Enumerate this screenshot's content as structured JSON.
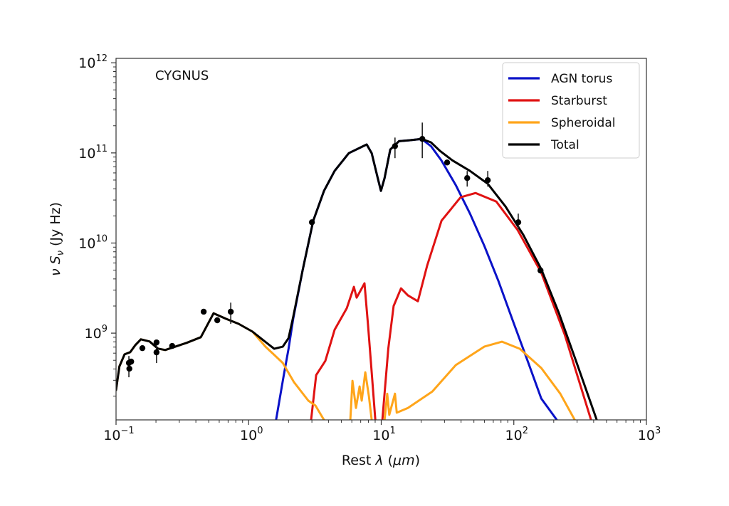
{
  "chart_data": {
    "type": "line",
    "annotation": "CYGNUS",
    "xlabel": "Rest λ (μm)",
    "ylabel": "ν S_ν (Jy Hz)",
    "xscale": "log",
    "yscale": "log",
    "xlim": [
      0.1,
      1000
    ],
    "ylim": [
      109000000.0,
      1120000000000.0
    ],
    "xticks": [
      {
        "base": "10",
        "exp": "−1",
        "value": 0.1
      },
      {
        "base": "10",
        "exp": "0",
        "value": 1
      },
      {
        "base": "10",
        "exp": "1",
        "value": 10
      },
      {
        "base": "10",
        "exp": "2",
        "value": 100
      },
      {
        "base": "10",
        "exp": "3",
        "value": 1000
      }
    ],
    "yticks": [
      {
        "base": "10",
        "exp": "9",
        "value": 1000000000.0
      },
      {
        "base": "10",
        "exp": "10",
        "value": 10000000000.0
      },
      {
        "base": "10",
        "exp": "11",
        "value": 100000000000.0
      },
      {
        "base": "10",
        "exp": "12",
        "value": 1000000000000.0
      }
    ],
    "grid": false,
    "legend_position": "top-right",
    "series": [
      {
        "name": "AGN torus",
        "color": "#0a12c8",
        "points": [
          [
            1.61,
            109000000.0
          ],
          [
            1.83,
            324000000.0
          ],
          [
            2.0,
            670000000.0
          ],
          [
            2.17,
            1450000000.0
          ],
          [
            2.55,
            4950000000.0
          ],
          [
            3.07,
            17700000000.0
          ],
          [
            3.7,
            37900000000.0
          ],
          [
            4.45,
            63100000000.0
          ],
          [
            5.7,
            99400000000.0
          ],
          [
            7.77,
            124000000000.0
          ],
          [
            8.47,
            99400000000.0
          ],
          [
            9.35,
            54500000000.0
          ],
          [
            9.95,
            37900000000.0
          ],
          [
            10.6,
            52600000000.0
          ],
          [
            11.7,
            109000000000.0
          ],
          [
            13.6,
            135000000000.0
          ],
          [
            16.3,
            138000000000.0
          ],
          [
            20.1,
            143000000000.0
          ],
          [
            23.7,
            119000000000.0
          ],
          [
            28.4,
            82800000000.0
          ],
          [
            36.5,
            43900000000.0
          ],
          [
            46.7,
            21200000000.0
          ],
          [
            59.8,
            9350000000.0
          ],
          [
            76.6,
            3770000000.0
          ],
          [
            98.0,
            1390000000.0
          ],
          [
            126,
            510000000.0
          ],
          [
            161,
            188000000.0
          ],
          [
            211,
            109000000.0
          ]
        ]
      },
      {
        "name": "Starburst",
        "color": "#e01212",
        "segments": [
          [
            [
              2.96,
              109000000.0
            ],
            [
              3.23,
              342000000.0
            ],
            [
              3.79,
              492000000.0
            ],
            [
              4.45,
              1090000000.0
            ],
            [
              5.5,
              1890000000.0
            ],
            [
              6.22,
              3260000000.0
            ],
            [
              6.53,
              2480000000.0
            ],
            [
              7.48,
              3570000000.0
            ],
            [
              7.96,
              1220000000.0
            ],
            [
              8.47,
              368000000.0
            ],
            [
              9.02,
              109000000.0
            ]
          ],
          [
            [
              10.2,
              109000000.0
            ],
            [
              11.3,
              670000000.0
            ],
            [
              12.4,
              2000000000.0
            ],
            [
              14.1,
              3140000000.0
            ],
            [
              15.9,
              2620000000.0
            ],
            [
              18.9,
              2260000000.0
            ],
            [
              22.2,
              5620000000.0
            ],
            [
              28.5,
              17700000000.0
            ],
            [
              39.7,
              32200000000.0
            ],
            [
              51.5,
              35900000000.0
            ],
            [
              73.8,
              28800000000.0
            ],
            [
              107,
              13900000000.0
            ],
            [
              161,
              4690000000.0
            ],
            [
              242,
              964000000.0
            ],
            [
              382,
              109000000.0
            ]
          ]
        ]
      },
      {
        "name": "Spheroidal",
        "color": "#ffa51a",
        "segments": [
          [
            [
              0.1,
              234000000.0
            ],
            [
              0.106,
              427000000.0
            ],
            [
              0.116,
              582000000.0
            ],
            [
              0.128,
              615000000.0
            ],
            [
              0.14,
              738000000.0
            ],
            [
              0.154,
              854000000.0
            ],
            [
              0.179,
              808000000.0
            ],
            [
              0.207,
              674000000.0
            ],
            [
              0.235,
              650000000.0
            ],
            [
              0.34,
              780000000.0
            ],
            [
              0.436,
              902000000.0
            ],
            [
              0.544,
              1660000000.0
            ],
            [
              0.679,
              1440000000.0
            ],
            [
              0.839,
              1270000000.0
            ],
            [
              1.07,
              1040000000.0
            ],
            [
              1.34,
              708000000.0
            ],
            [
              1.81,
              467000000.0
            ],
            [
              2.2,
              285000000.0
            ],
            [
              2.82,
              178000000.0
            ],
            [
              3.19,
              157000000.0
            ],
            [
              3.7,
              109000000.0
            ]
          ],
          [
            [
              5.85,
              109000000.0
            ],
            [
              6.07,
              296000000.0
            ],
            [
              6.45,
              148000000.0
            ],
            [
              6.87,
              256000000.0
            ],
            [
              7.13,
              178000000.0
            ],
            [
              7.58,
              368000000.0
            ],
            [
              8.07,
              199000000.0
            ],
            [
              8.47,
              109000000.0
            ]
          ],
          [
            [
              10.6,
              109000000.0
            ],
            [
              11.1,
              213000000.0
            ],
            [
              11.5,
              124000000.0
            ],
            [
              12.7,
              213000000.0
            ],
            [
              13.1,
              131000000.0
            ],
            [
              15.9,
              148000000.0
            ],
            [
              24.3,
              225000000.0
            ],
            [
              36.5,
              442000000.0
            ],
            [
              59.8,
              708000000.0
            ],
            [
              81.5,
              804000000.0
            ],
            [
              111,
              670000000.0
            ],
            [
              161,
              410000000.0
            ],
            [
              224,
              213000000.0
            ],
            [
              288,
              109000000.0
            ]
          ]
        ]
      },
      {
        "name": "Total",
        "color": "#000000",
        "points": [
          [
            0.1,
            234000000.0
          ],
          [
            0.106,
            427000000.0
          ],
          [
            0.116,
            582000000.0
          ],
          [
            0.128,
            615000000.0
          ],
          [
            0.14,
            738000000.0
          ],
          [
            0.154,
            854000000.0
          ],
          [
            0.179,
            808000000.0
          ],
          [
            0.207,
            674000000.0
          ],
          [
            0.235,
            650000000.0
          ],
          [
            0.34,
            780000000.0
          ],
          [
            0.436,
            902000000.0
          ],
          [
            0.544,
            1660000000.0
          ],
          [
            0.679,
            1440000000.0
          ],
          [
            0.839,
            1270000000.0
          ],
          [
            1.07,
            1040000000.0
          ],
          [
            1.29,
            834000000.0
          ],
          [
            1.56,
            670000000.0
          ],
          [
            1.81,
            708000000.0
          ],
          [
            2.0,
            881000000.0
          ],
          [
            2.17,
            1520000000.0
          ],
          [
            2.55,
            4950000000.0
          ],
          [
            3.07,
            17700000000.0
          ],
          [
            3.7,
            37900000000.0
          ],
          [
            4.45,
            63100000000.0
          ],
          [
            5.7,
            99400000000.0
          ],
          [
            7.77,
            124000000000.0
          ],
          [
            8.47,
            99400000000.0
          ],
          [
            9.35,
            54500000000.0
          ],
          [
            9.95,
            37900000000.0
          ],
          [
            10.6,
            52600000000.0
          ],
          [
            11.7,
            109000000000.0
          ],
          [
            13.6,
            135000000000.0
          ],
          [
            16.3,
            138000000000.0
          ],
          [
            20.1,
            143000000000.0
          ],
          [
            23.7,
            131000000000.0
          ],
          [
            27.8,
            105000000000.0
          ],
          [
            34.3,
            82800000000.0
          ],
          [
            46.7,
            63100000000.0
          ],
          [
            63.6,
            45500000000.0
          ],
          [
            86.6,
            25400000000.0
          ],
          [
            118,
            12300000000.0
          ],
          [
            161,
            5130000000.0
          ],
          [
            219,
            1660000000.0
          ],
          [
            298,
            467000000.0
          ],
          [
            422,
            109000000.0
          ]
        ]
      }
    ],
    "observations": [
      {
        "x": 0.125,
        "y": 467000000.0,
        "ylo": 324000000.0,
        "yhi": 558000000.0
      },
      {
        "x": 0.126,
        "y": 403000000.0
      },
      {
        "x": 0.13,
        "y": 483000000.0
      },
      {
        "x": 0.158,
        "y": 682000000.0
      },
      {
        "x": 0.202,
        "y": 789000000.0
      },
      {
        "x": 0.202,
        "y": 612000000.0,
        "ylo": 466000000.0,
        "yhi": 735000000.0
      },
      {
        "x": 0.265,
        "y": 721000000.0
      },
      {
        "x": 0.458,
        "y": 1730000000.0
      },
      {
        "x": 0.58,
        "y": 1390000000.0
      },
      {
        "x": 0.733,
        "y": 1730000000.0,
        "ylo": 1270000000.0,
        "yhi": 2180000000.0
      },
      {
        "x": 3.0,
        "y": 17000000000.0
      },
      {
        "x": 12.7,
        "y": 119000000000.0,
        "ylo": 87500000000.0,
        "yhi": 148000000000.0
      },
      {
        "x": 20.4,
        "y": 143000000000.0,
        "ylo": 87500000000.0,
        "yhi": 217000000000.0
      },
      {
        "x": 31.4,
        "y": 78300000000.0
      },
      {
        "x": 44.5,
        "y": 52600000000.0,
        "ylo": 42300000000.0,
        "yhi": 63100000000.0
      },
      {
        "x": 63.6,
        "y": 49800000000.0,
        "ylo": 42300000000.0,
        "yhi": 63100000000.0
      },
      {
        "x": 108,
        "y": 17000000000.0,
        "ylo": 14200000000.0,
        "yhi": 21200000000.0
      },
      {
        "x": 159,
        "y": 4950000000.0
      }
    ]
  }
}
